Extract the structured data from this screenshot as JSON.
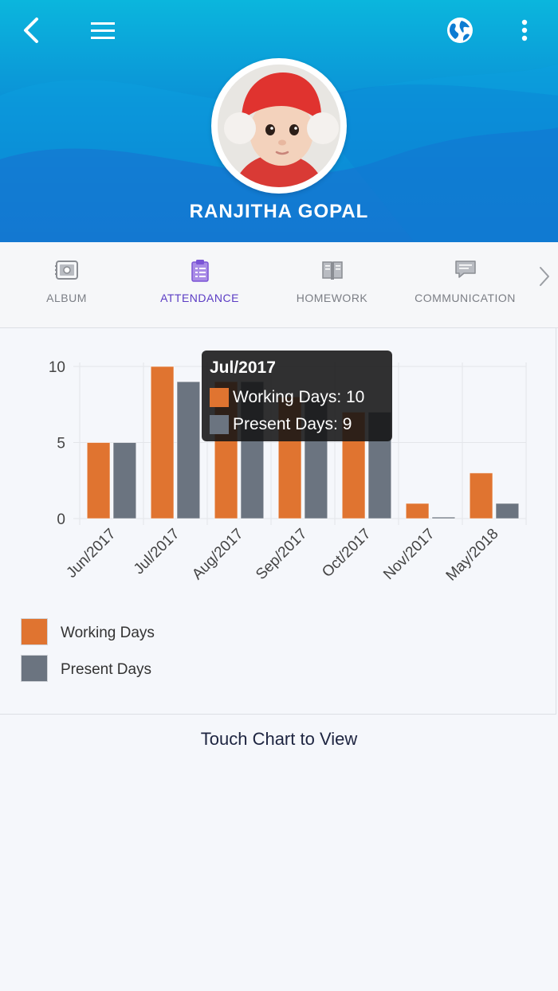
{
  "profile": {
    "name": "RANJITHA GOPAL"
  },
  "header": {
    "back_icon": "chevron-left-icon",
    "menu_icon": "hamburger-menu-icon",
    "language_icon": "globe-icon",
    "more_icon": "more-vertical-icon"
  },
  "tabs": [
    {
      "label": "ALBUM",
      "icon": "album-icon",
      "active": false
    },
    {
      "label": "ATTENDANCE",
      "icon": "clipboard-icon",
      "active": true
    },
    {
      "label": "HOMEWORK",
      "icon": "book-icon",
      "active": false
    },
    {
      "label": "COMMUNICATION",
      "icon": "chat-icon",
      "active": false
    }
  ],
  "colors": {
    "working": "#e07430",
    "present": "#6b7480",
    "active_tab": "#5b3cc4"
  },
  "chart_data": {
    "type": "bar",
    "categories": [
      "Jun/2017",
      "Jul/2017",
      "Aug/2017",
      "Sep/2017",
      "Oct/2017",
      "Nov/2017",
      "May/2018"
    ],
    "series": [
      {
        "name": "Working Days",
        "values": [
          5,
          10,
          9,
          8,
          7,
          1,
          3
        ]
      },
      {
        "name": "Present Days",
        "values": [
          5,
          9,
          9,
          8,
          7,
          0.1,
          1
        ]
      }
    ],
    "ylim": [
      0,
      10
    ],
    "yticks": [
      0,
      5,
      10
    ],
    "legend": "bottom-left",
    "grid": true
  },
  "tooltip": {
    "title": "Jul/2017",
    "working": "Working Days: 10",
    "present": "Present Days: 9"
  },
  "footer": {
    "hint": "Touch Chart to View"
  }
}
